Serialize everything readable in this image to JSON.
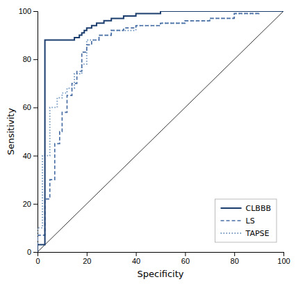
{
  "chart_data": {
    "type": "line",
    "xlabel": "Specificity",
    "ylabel": "Sensitivity",
    "xlim": [
      0,
      100
    ],
    "ylim": [
      0,
      100
    ],
    "xticks": [
      0,
      20,
      40,
      60,
      80,
      100
    ],
    "yticks": [
      0,
      20,
      40,
      60,
      80,
      100
    ],
    "grid": false,
    "legend": "lower right",
    "reference_line": {
      "color": "#333333",
      "x": [
        0,
        100
      ],
      "values": [
        0,
        100
      ]
    },
    "series": [
      {
        "name": "CLBBB",
        "color": "#1a3d6e",
        "line_style": "solid",
        "x": [
          0,
          0,
          3,
          3,
          15,
          15,
          17,
          17,
          18,
          18,
          19,
          19,
          20,
          20,
          22,
          22,
          24,
          24,
          27,
          27,
          30,
          30,
          35,
          35,
          40,
          40,
          50,
          50,
          60,
          60,
          70,
          70,
          80,
          80,
          90,
          90,
          100,
          100
        ],
        "values": [
          0,
          3,
          3,
          88,
          88,
          89,
          89,
          90,
          90,
          91,
          91,
          92,
          92,
          93,
          93,
          94,
          94,
          95,
          95,
          96,
          96,
          97,
          97,
          98,
          98,
          99,
          99,
          100,
          100,
          100,
          100,
          100,
          100,
          100,
          100,
          100,
          100,
          100
        ]
      },
      {
        "name": "LS",
        "color": "#4a6fa5",
        "line_style": "dashed",
        "x": [
          0,
          0,
          3,
          3,
          5,
          5,
          7,
          7,
          9,
          9,
          10,
          10,
          12,
          12,
          14,
          14,
          16,
          16,
          18,
          18,
          20,
          20,
          22,
          22,
          25,
          25,
          30,
          30,
          35,
          35,
          40,
          40,
          50,
          50,
          60,
          60,
          70,
          70,
          80,
          80,
          90,
          90,
          100,
          100
        ],
        "values": [
          0,
          7,
          7,
          22,
          22,
          30,
          30,
          45,
          45,
          50,
          50,
          58,
          58,
          65,
          65,
          70,
          70,
          75,
          75,
          83,
          83,
          86,
          86,
          88,
          88,
          90,
          90,
          92,
          92,
          93,
          93,
          94,
          94,
          95,
          95,
          96,
          96,
          97,
          97,
          99,
          99,
          100,
          100,
          100
        ]
      },
      {
        "name": "TAPSE",
        "color": "#7096c0",
        "line_style": "dotted",
        "x": [
          0,
          0,
          2,
          2,
          5,
          5,
          8,
          8,
          10,
          10,
          12,
          12,
          15,
          15,
          18,
          18,
          20,
          20,
          25,
          25,
          30,
          30,
          40,
          40,
          50,
          50,
          60,
          60,
          70,
          70,
          80,
          80,
          90,
          90,
          100,
          100
        ],
        "values": [
          0,
          10,
          10,
          40,
          40,
          60,
          60,
          64,
          64,
          66,
          66,
          68,
          68,
          74,
          74,
          78,
          78,
          88,
          88,
          90,
          90,
          92,
          92,
          94,
          94,
          95,
          95,
          96,
          96,
          97,
          97,
          99,
          99,
          100,
          100,
          100
        ]
      }
    ]
  }
}
